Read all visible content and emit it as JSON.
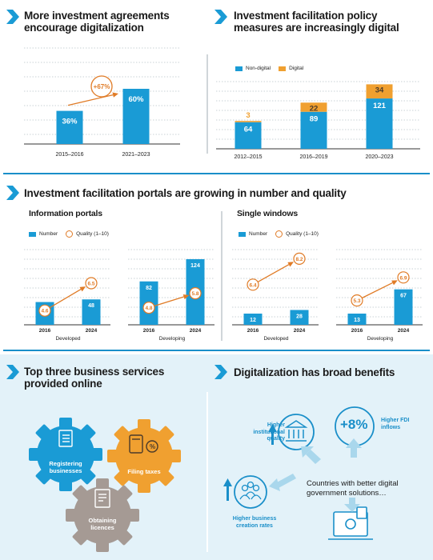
{
  "colors": {
    "blue": "#1a9bd5",
    "orange": "#f0a030",
    "arrow": "#e07b26",
    "dark_blue": "#1a8fc9",
    "grey_gear": "#a59a94"
  },
  "section1": {
    "title": "More investment agreements encourage digitalization",
    "change_label": "+67%",
    "chart_data": {
      "type": "bar",
      "categories": [
        "2015–2016",
        "2021–2023"
      ],
      "values": [
        36,
        60
      ],
      "value_labels": [
        "36%",
        "60%"
      ]
    }
  },
  "section2": {
    "title": "Investment facilitation policy measures are increasingly digital",
    "legend": [
      "Non-digital",
      "Digital"
    ],
    "chart_data": {
      "type": "bar",
      "stacked": true,
      "categories": [
        "2012–2015",
        "2016–2019",
        "2020–2023"
      ],
      "series": [
        {
          "name": "Non-digital",
          "values": [
            64,
            89,
            121
          ]
        },
        {
          "name": "Digital",
          "values": [
            3,
            22,
            34
          ]
        }
      ]
    }
  },
  "section3": {
    "title": "Investment facilitation portals are growing in number and quality",
    "legend_number": "Number",
    "legend_quality": "Quality (1–10)",
    "info_portals": {
      "subtitle": "Information portals",
      "charts": [
        {
          "group": "Developed",
          "categories": [
            "2016",
            "2024"
          ],
          "numbers": [
            43,
            48
          ],
          "quality": [
            4.6,
            6.5
          ]
        },
        {
          "group": "Developing",
          "categories": [
            "2016",
            "2024"
          ],
          "numbers": [
            82,
            124
          ],
          "quality": [
            4.8,
            5.8
          ]
        }
      ]
    },
    "single_windows": {
      "subtitle": "Single windows",
      "charts": [
        {
          "group": "Developed",
          "categories": [
            "2016",
            "2024"
          ],
          "numbers": [
            12,
            28
          ],
          "quality": [
            6.4,
            8.2
          ]
        },
        {
          "group": "Developing",
          "categories": [
            "2016",
            "2024"
          ],
          "numbers": [
            13,
            67
          ],
          "quality": [
            5.3,
            6.9
          ]
        }
      ]
    }
  },
  "section4": {
    "title": "Top three business services provided online",
    "services": [
      "Registering businesses",
      "Filing taxes",
      "Obtaining licences"
    ]
  },
  "section5": {
    "title": "Digitalization has broad benefits",
    "center_text": "Countries with better digital government solutions…",
    "benefit_institutional": "Higher institutional quality",
    "benefit_fdi": "Higher FDI inflows",
    "fdi_value": "+8%",
    "benefit_business": "Higher business creation rates"
  }
}
